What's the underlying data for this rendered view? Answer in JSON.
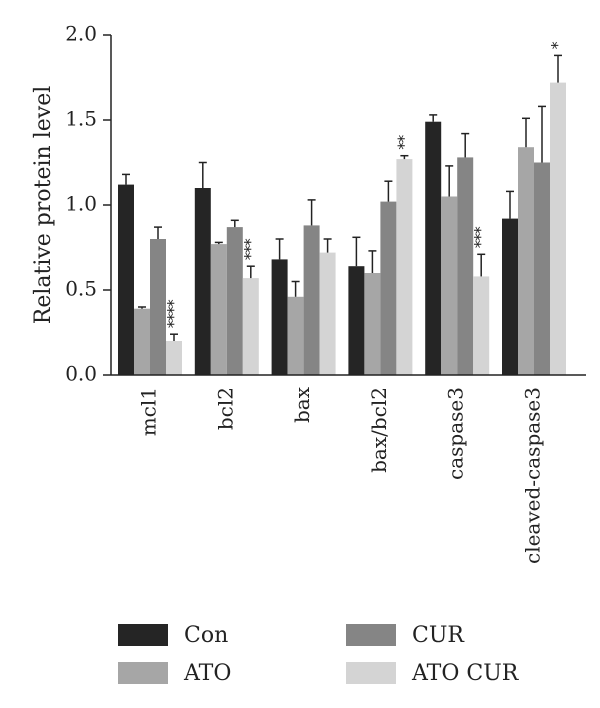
{
  "chart_data": {
    "type": "bar",
    "ylabel": "Relative protein level",
    "ylim": [
      0,
      2.0
    ],
    "yticks": [
      "0.0",
      "0.5",
      "1.0",
      "1.5",
      "2.0"
    ],
    "categories": [
      "mcl1",
      "bcl2",
      "bax",
      "bax/bcl2",
      "caspase3",
      "cleaved-caspase3"
    ],
    "series": [
      {
        "name": "Con",
        "color": "#252525",
        "values": [
          1.12,
          1.1,
          0.68,
          0.64,
          1.49,
          0.92
        ],
        "errors": [
          0.06,
          0.15,
          0.12,
          0.17,
          0.04,
          0.16
        ]
      },
      {
        "name": "ATO",
        "color": "#a6a6a6",
        "values": [
          0.39,
          0.77,
          0.46,
          0.6,
          1.05,
          1.34
        ],
        "errors": [
          0.01,
          0.01,
          0.09,
          0.13,
          0.18,
          0.17
        ]
      },
      {
        "name": "CUR",
        "color": "#858585",
        "values": [
          0.8,
          0.87,
          0.88,
          1.02,
          1.28,
          1.25
        ],
        "errors": [
          0.07,
          0.04,
          0.15,
          0.12,
          0.14,
          0.33
        ]
      },
      {
        "name": "ATO CUR",
        "color": "#d4d4d4",
        "values": [
          0.2,
          0.57,
          0.72,
          1.27,
          0.58,
          1.72
        ],
        "errors": [
          0.04,
          0.07,
          0.08,
          0.02,
          0.13,
          0.16
        ]
      }
    ],
    "significance": [
      {
        "category": "mcl1",
        "series": "ATO CUR",
        "label": "****"
      },
      {
        "category": "bcl2",
        "series": "ATO CUR",
        "label": "***"
      },
      {
        "category": "bax/bcl2",
        "series": "ATO CUR",
        "label": "**"
      },
      {
        "category": "caspase3",
        "series": "ATO CUR",
        "label": "***"
      },
      {
        "category": "cleaved-caspase3",
        "series": "ATO CUR",
        "label": "*"
      }
    ],
    "grid": false,
    "legend_position": "bottom"
  }
}
